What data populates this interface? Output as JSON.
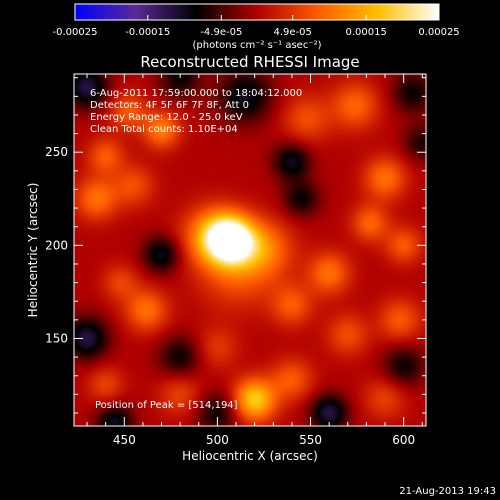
{
  "chart_data": {
    "type": "heatmap",
    "title": "Reconstructed RHESSI Image",
    "xlabel": "Heliocentric X (arcsec)",
    "ylabel": "Heliocentric Y (arcsec)",
    "xlim": [
      423,
      612
    ],
    "ylim": [
      103,
      292
    ],
    "x_ticks": [
      450,
      500,
      550,
      600
    ],
    "x_tick_labels": [
      "450",
      "500",
      "550",
      "600"
    ],
    "y_ticks": [
      150,
      200,
      250
    ],
    "y_tick_labels": [
      "150",
      "200",
      "250"
    ],
    "colorbar": {
      "range": [
        -0.00025,
        0.00025
      ],
      "ticks": [
        -0.00025,
        -0.00015,
        -4.9e-05,
        4.9e-05,
        0.00015,
        0.00025
      ],
      "tick_labels": [
        "-0.00025",
        "-0.00015",
        "-4.9e-05",
        "4.9e-05",
        "0.00015",
        "0.00025"
      ],
      "units_label": "(photons cm⁻² s⁻¹ asec⁻²)",
      "colormap": [
        "#0000ff",
        "#5a2a96",
        "#000000",
        "#b00000",
        "#ff5a00",
        "#ffc000",
        "#ffffff"
      ]
    },
    "annotations": [
      "6-Aug-2011 17:59:00.000 to 18:04:12.000",
      "Detectors: 4F 5F 6F 7F 8F, Att 0",
      "Energy Range: 12.0 - 25.0 keV",
      "Clean     Total counts: 1.10E+04"
    ],
    "peak_text": "Position of Peak = [514,194]",
    "peak": [
      514,
      194
    ],
    "sources": [
      {
        "x": 507,
        "y": 203,
        "amp": 0.00026,
        "sigma": 9
      },
      {
        "x": 497,
        "y": 205,
        "amp": 0.00012,
        "sigma": 11
      },
      {
        "x": 525,
        "y": 198,
        "amp": 0.0001,
        "sigma": 11
      },
      {
        "x": 510,
        "y": 185,
        "amp": 7e-05,
        "sigma": 14
      },
      {
        "x": 470,
        "y": 262,
        "amp": 0.00011,
        "sigma": 7
      },
      {
        "x": 452,
        "y": 272,
        "amp": 8e-05,
        "sigma": 7
      },
      {
        "x": 440,
        "y": 248,
        "amp": 8e-05,
        "sigma": 7
      },
      {
        "x": 435,
        "y": 225,
        "amp": 0.0001,
        "sigma": 8
      },
      {
        "x": 455,
        "y": 232,
        "amp": 7e-05,
        "sigma": 8
      },
      {
        "x": 590,
        "y": 236,
        "amp": 0.0001,
        "sigma": 8
      },
      {
        "x": 582,
        "y": 212,
        "amp": 9e-05,
        "sigma": 7
      },
      {
        "x": 600,
        "y": 200,
        "amp": 8e-05,
        "sigma": 7
      },
      {
        "x": 574,
        "y": 275,
        "amp": 9e-05,
        "sigma": 9
      },
      {
        "x": 548,
        "y": 268,
        "amp": 7e-05,
        "sigma": 9
      },
      {
        "x": 560,
        "y": 185,
        "amp": 0.0001,
        "sigma": 8
      },
      {
        "x": 540,
        "y": 168,
        "amp": 8e-05,
        "sigma": 8
      },
      {
        "x": 570,
        "y": 152,
        "amp": 7e-05,
        "sigma": 8
      },
      {
        "x": 598,
        "y": 160,
        "amp": 8e-05,
        "sigma": 8
      },
      {
        "x": 462,
        "y": 165,
        "amp": 0.0001,
        "sigma": 8
      },
      {
        "x": 448,
        "y": 180,
        "amp": 6e-05,
        "sigma": 7
      },
      {
        "x": 520,
        "y": 117,
        "amp": 0.00018,
        "sigma": 8
      },
      {
        "x": 540,
        "y": 128,
        "amp": 8e-05,
        "sigma": 8
      },
      {
        "x": 480,
        "y": 120,
        "amp": 6e-05,
        "sigma": 8
      },
      {
        "x": 440,
        "y": 125,
        "amp": 6e-05,
        "sigma": 7
      },
      {
        "x": 590,
        "y": 118,
        "amp": 6e-05,
        "sigma": 8
      },
      {
        "x": 500,
        "y": 145,
        "amp": 5e-05,
        "sigma": 8
      },
      {
        "x": 430,
        "y": 285,
        "amp": -0.00012,
        "sigma": 8
      },
      {
        "x": 515,
        "y": 280,
        "amp": -0.0001,
        "sigma": 10
      },
      {
        "x": 430,
        "y": 150,
        "amp": -0.00012,
        "sigma": 8
      },
      {
        "x": 480,
        "y": 290,
        "amp": -8e-05,
        "sigma": 8
      },
      {
        "x": 605,
        "y": 282,
        "amp": -8e-05,
        "sigma": 8
      },
      {
        "x": 470,
        "y": 195,
        "amp": -0.0001,
        "sigma": 7
      },
      {
        "x": 545,
        "y": 225,
        "amp": -8e-05,
        "sigma": 7
      },
      {
        "x": 540,
        "y": 245,
        "amp": -0.0001,
        "sigma": 7
      },
      {
        "x": 480,
        "y": 140,
        "amp": -8e-05,
        "sigma": 8
      },
      {
        "x": 560,
        "y": 110,
        "amp": -0.00012,
        "sigma": 7
      },
      {
        "x": 600,
        "y": 135,
        "amp": -8e-05,
        "sigma": 8
      },
      {
        "x": 445,
        "y": 105,
        "amp": -0.0001,
        "sigma": 7
      },
      {
        "x": 500,
        "y": 110,
        "amp": -8e-05,
        "sigma": 8
      },
      {
        "x": 610,
        "y": 255,
        "amp": -7e-05,
        "sigma": 7
      }
    ]
  },
  "timestamp": "21-Aug-2013 19:43"
}
